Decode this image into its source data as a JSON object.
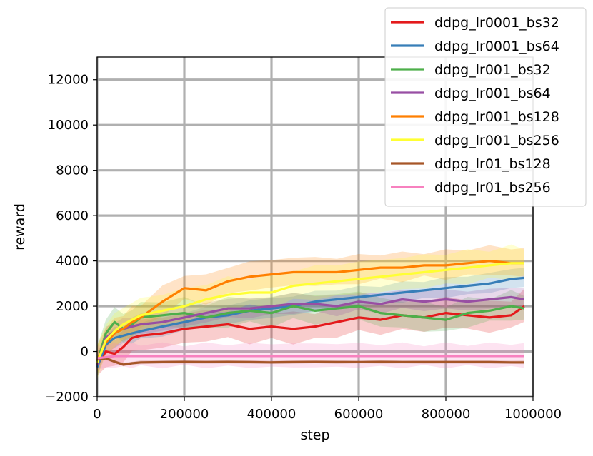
{
  "chart_data": {
    "type": "line",
    "xlabel": "step",
    "ylabel": "reward",
    "xlim": [
      0,
      1000000
    ],
    "ylim": [
      -2000,
      13000
    ],
    "x_ticks": [
      0,
      200000,
      400000,
      600000,
      800000,
      1000000
    ],
    "x_tick_labels": [
      "0",
      "200000",
      "400000",
      "600000",
      "800000",
      "1000000"
    ],
    "y_ticks": [
      -2000,
      0,
      2000,
      4000,
      6000,
      8000,
      10000,
      12000
    ],
    "y_tick_labels": [
      "−2000",
      "0",
      "2000",
      "4000",
      "6000",
      "8000",
      "10000",
      "12000"
    ],
    "grid": true,
    "legend_position": "top-right",
    "series": [
      {
        "name": "ddpg_lr0001_bs32",
        "color": "#e41a1c",
        "x": [
          0,
          20000,
          40000,
          60000,
          80000,
          100000,
          150000,
          200000,
          250000,
          300000,
          350000,
          400000,
          450000,
          500000,
          550000,
          600000,
          650000,
          700000,
          750000,
          800000,
          850000,
          900000,
          950000,
          980000
        ],
        "values": [
          -600,
          0,
          -100,
          200,
          600,
          700,
          800,
          1000,
          1100,
          1200,
          1000,
          1100,
          1000,
          1100,
          1300,
          1500,
          1400,
          1600,
          1500,
          1700,
          1600,
          1500,
          1600,
          2000
        ],
        "band": 700
      },
      {
        "name": "ddpg_lr0001_bs64",
        "color": "#377eb8",
        "x": [
          0,
          20000,
          40000,
          60000,
          80000,
          100000,
          150000,
          200000,
          250000,
          300000,
          350000,
          400000,
          450000,
          500000,
          550000,
          600000,
          650000,
          700000,
          750000,
          800000,
          850000,
          900000,
          950000,
          980000
        ],
        "values": [
          -700,
          300,
          600,
          700,
          800,
          900,
          1100,
          1300,
          1500,
          1600,
          1800,
          1900,
          2000,
          2200,
          2300,
          2400,
          2500,
          2600,
          2700,
          2800,
          2900,
          3000,
          3200,
          3250
        ],
        "band": 450
      },
      {
        "name": "ddpg_lr001_bs32",
        "color": "#4daf4a",
        "x": [
          0,
          20000,
          40000,
          60000,
          80000,
          100000,
          150000,
          200000,
          250000,
          300000,
          350000,
          400000,
          450000,
          500000,
          550000,
          600000,
          650000,
          700000,
          750000,
          800000,
          850000,
          900000,
          950000,
          980000
        ],
        "values": [
          -500,
          800,
          1300,
          1000,
          1200,
          1500,
          1600,
          1700,
          1500,
          1700,
          1800,
          1700,
          2000,
          1800,
          1900,
          2000,
          1700,
          1600,
          1500,
          1400,
          1700,
          1800,
          2000,
          1900
        ],
        "band": 650
      },
      {
        "name": "ddpg_lr001_bs64",
        "color": "#984ea3",
        "x": [
          0,
          20000,
          40000,
          60000,
          80000,
          100000,
          150000,
          200000,
          250000,
          300000,
          350000,
          400000,
          450000,
          500000,
          550000,
          600000,
          650000,
          700000,
          750000,
          800000,
          850000,
          900000,
          950000,
          980000
        ],
        "values": [
          -600,
          600,
          900,
          1000,
          1100,
          1200,
          1300,
          1500,
          1700,
          1900,
          1900,
          2000,
          2100,
          2100,
          2000,
          2200,
          2100,
          2300,
          2200,
          2300,
          2200,
          2300,
          2400,
          2300
        ],
        "band": 450
      },
      {
        "name": "ddpg_lr001_bs128",
        "color": "#ff7f00",
        "x": [
          0,
          20000,
          40000,
          60000,
          80000,
          100000,
          150000,
          200000,
          250000,
          300000,
          350000,
          400000,
          450000,
          500000,
          550000,
          600000,
          650000,
          700000,
          750000,
          800000,
          850000,
          900000,
          950000,
          980000
        ],
        "values": [
          -400,
          400,
          800,
          1000,
          1300,
          1500,
          2200,
          2800,
          2700,
          3100,
          3300,
          3400,
          3500,
          3500,
          3500,
          3600,
          3700,
          3700,
          3800,
          3800,
          3900,
          4000,
          3900,
          3900
        ],
        "band": 650
      },
      {
        "name": "ddpg_lr001_bs256",
        "color": "#ffff33",
        "x": [
          0,
          20000,
          40000,
          60000,
          80000,
          100000,
          150000,
          200000,
          250000,
          300000,
          350000,
          400000,
          450000,
          500000,
          550000,
          600000,
          650000,
          700000,
          750000,
          800000,
          850000,
          900000,
          950000,
          980000
        ],
        "values": [
          -500,
          500,
          900,
          1200,
          1400,
          1600,
          1800,
          2000,
          2300,
          2500,
          2600,
          2600,
          2900,
          3000,
          3100,
          3200,
          3300,
          3400,
          3500,
          3600,
          3700,
          3800,
          3900,
          3900
        ],
        "band": 750
      },
      {
        "name": "ddpg_lr01_bs128",
        "color": "#a65628",
        "x": [
          0,
          20000,
          40000,
          60000,
          80000,
          100000,
          150000,
          200000,
          250000,
          300000,
          350000,
          400000,
          450000,
          500000,
          550000,
          600000,
          650000,
          700000,
          750000,
          800000,
          850000,
          900000,
          950000,
          980000
        ],
        "values": [
          -350,
          -300,
          -450,
          -580,
          -520,
          -480,
          -470,
          -460,
          -470,
          -460,
          -470,
          -480,
          -470,
          -460,
          -470,
          -470,
          -460,
          -470,
          -470,
          -470,
          -470,
          -470,
          -480,
          -480
        ],
        "band": 80
      },
      {
        "name": "ddpg_lr01_bs256",
        "color": "#f781bf",
        "x": [
          0,
          20000,
          40000,
          60000,
          80000,
          100000,
          150000,
          200000,
          250000,
          300000,
          350000,
          400000,
          450000,
          500000,
          550000,
          600000,
          650000,
          700000,
          750000,
          800000,
          850000,
          900000,
          950000,
          980000
        ],
        "values": [
          -300,
          -250,
          -200,
          -200,
          -200,
          -200,
          -200,
          -200,
          -200,
          -200,
          -200,
          -200,
          -200,
          -200,
          -200,
          -200,
          -200,
          -200,
          -200,
          -200,
          -200,
          -200,
          -200,
          -200
        ],
        "band": 550
      }
    ]
  }
}
